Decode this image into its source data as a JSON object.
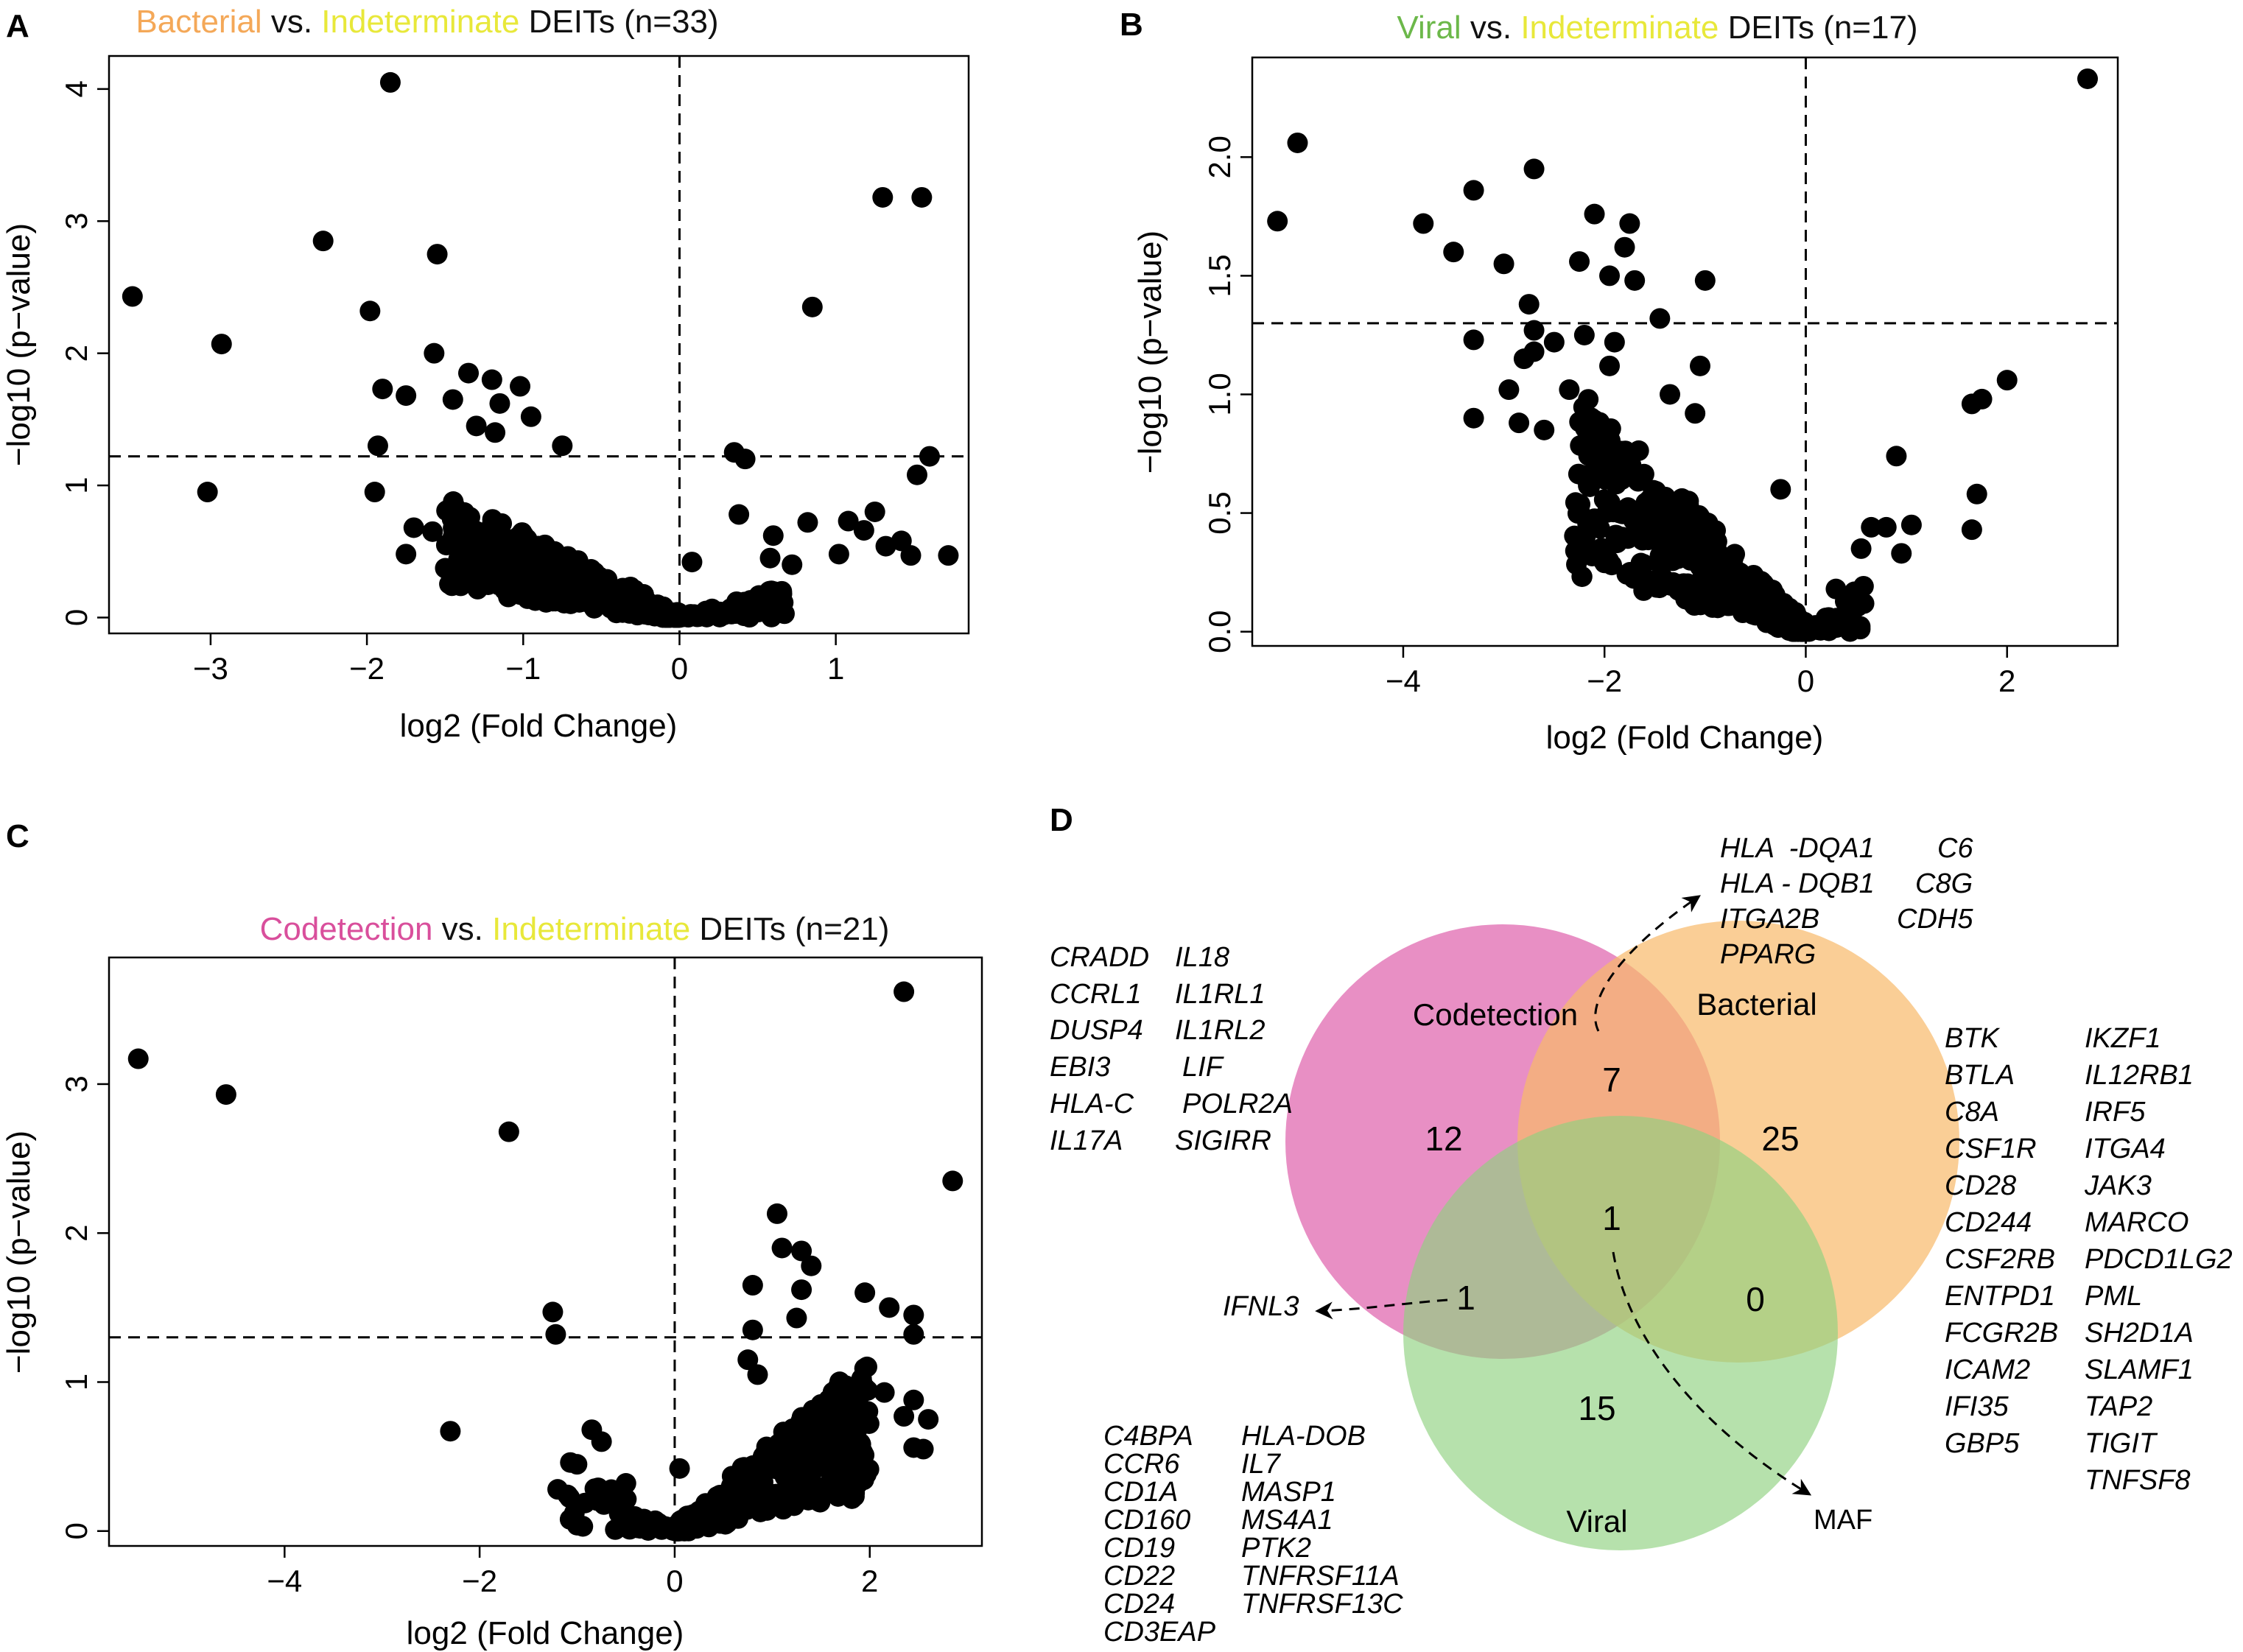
{
  "colors": {
    "bacterial": "#f4a858",
    "indeterminate": "#e8e83a",
    "viral": "#6cb84a",
    "codetection": "#d94f9c",
    "point": "#000000",
    "venn_codetection": "#e06ab0",
    "venn_bacterial": "#f8b96a",
    "venn_viral": "#8fd17f"
  },
  "chart_data": [
    {
      "panel": "A",
      "type": "scatter",
      "title_parts": [
        {
          "text": "Bacterial",
          "color": "bacterial"
        },
        {
          "text": " vs. ",
          "color": "black"
        },
        {
          "text": "Indeterminate",
          "color": "indeterminate"
        },
        {
          "text": " DEITs (n=33)",
          "color": "black"
        }
      ],
      "xlabel": "log2 (Fold Change)",
      "ylabel": "−log10 (p−value)",
      "xlim": [
        -3.65,
        1.85
      ],
      "ylim": [
        -0.12,
        4.25
      ],
      "xticks": [
        -3,
        -2,
        -1,
        0,
        1
      ],
      "yticks": [
        0,
        1,
        2,
        3,
        4
      ],
      "tick_labels_x": [
        "−3",
        "−2",
        "−1",
        "0",
        "1"
      ],
      "tick_labels_y": [
        "0",
        "1",
        "2",
        "3",
        "4"
      ],
      "threshold_y": 1.22,
      "threshold_x": 0,
      "points": [
        [
          -1.85,
          4.05
        ],
        [
          1.3,
          3.18
        ],
        [
          1.55,
          3.18
        ],
        [
          -2.28,
          2.85
        ],
        [
          -1.55,
          2.75
        ],
        [
          -3.5,
          2.43
        ],
        [
          -1.98,
          2.32
        ],
        [
          0.85,
          2.35
        ],
        [
          -2.93,
          2.07
        ],
        [
          -1.57,
          2.0
        ],
        [
          -1.35,
          1.85
        ],
        [
          -1.2,
          1.8
        ],
        [
          -1.02,
          1.75
        ],
        [
          -1.9,
          1.73
        ],
        [
          -1.75,
          1.68
        ],
        [
          -1.45,
          1.65
        ],
        [
          -1.15,
          1.62
        ],
        [
          -0.95,
          1.52
        ],
        [
          -1.3,
          1.45
        ],
        [
          -1.18,
          1.4
        ],
        [
          -1.93,
          1.3
        ],
        [
          -0.75,
          1.3
        ],
        [
          0.35,
          1.25
        ],
        [
          0.42,
          1.2
        ],
        [
          1.6,
          1.22
        ],
        [
          1.52,
          1.08
        ],
        [
          -3.02,
          0.95
        ],
        [
          -1.95,
          0.95
        ],
        [
          -1.7,
          0.68
        ],
        [
          -1.75,
          0.48
        ],
        [
          -1.58,
          0.65
        ],
        [
          0.6,
          0.62
        ],
        [
          0.82,
          0.72
        ],
        [
          0.58,
          0.45
        ],
        [
          0.72,
          0.4
        ],
        [
          1.02,
          0.48
        ],
        [
          1.08,
          0.73
        ],
        [
          1.25,
          0.8
        ],
        [
          1.18,
          0.66
        ],
        [
          1.48,
          0.47
        ],
        [
          1.72,
          0.47
        ],
        [
          1.42,
          0.58
        ],
        [
          1.32,
          0.54
        ],
        [
          0.38,
          0.78
        ],
        [
          0.08,
          0.42
        ]
      ],
      "cluster": "negative-wedge"
    },
    {
      "panel": "B",
      "type": "scatter",
      "title_parts": [
        {
          "text": "Viral",
          "color": "viral"
        },
        {
          "text": "  vs. ",
          "color": "black"
        },
        {
          "text": "Indeterminate",
          "color": "indeterminate"
        },
        {
          "text": " DEITs (n=17)",
          "color": "black"
        }
      ],
      "xlabel": "log2 (Fold Change)",
      "ylabel": "−log10 (p−value)",
      "xlim": [
        -5.5,
        3.1
      ],
      "ylim": [
        -0.06,
        2.42
      ],
      "xticks": [
        -4,
        -2,
        0,
        2
      ],
      "yticks": [
        0.0,
        0.5,
        1.0,
        1.5,
        2.0
      ],
      "tick_labels_x": [
        "−4",
        "−2",
        "0",
        "2"
      ],
      "tick_labels_y": [
        "0.0",
        "0.5",
        "1.0",
        "1.5",
        "2.0"
      ],
      "threshold_y": 1.3,
      "threshold_x": 0,
      "points": [
        [
          2.8,
          2.33
        ],
        [
          -5.05,
          2.06
        ],
        [
          -5.25,
          1.73
        ],
        [
          -2.7,
          1.95
        ],
        [
          -3.3,
          1.86
        ],
        [
          -2.1,
          1.76
        ],
        [
          -3.8,
          1.72
        ],
        [
          -1.75,
          1.72
        ],
        [
          -1.8,
          1.62
        ],
        [
          -3.5,
          1.6
        ],
        [
          -2.25,
          1.56
        ],
        [
          -3.0,
          1.55
        ],
        [
          -1.7,
          1.48
        ],
        [
          -1.95,
          1.5
        ],
        [
          -1.0,
          1.48
        ],
        [
          -2.75,
          1.38
        ],
        [
          -1.45,
          1.32
        ],
        [
          -2.7,
          1.27
        ],
        [
          -2.2,
          1.25
        ],
        [
          -3.3,
          1.23
        ],
        [
          -2.5,
          1.22
        ],
        [
          -1.9,
          1.22
        ],
        [
          -2.7,
          1.18
        ],
        [
          -2.8,
          1.15
        ],
        [
          -1.95,
          1.12
        ],
        [
          -1.05,
          1.12
        ],
        [
          -2.95,
          1.02
        ],
        [
          -2.35,
          1.02
        ],
        [
          -1.35,
          1.0
        ],
        [
          -3.3,
          0.9
        ],
        [
          -2.85,
          0.88
        ],
        [
          -2.6,
          0.85
        ],
        [
          -1.1,
          0.92
        ],
        [
          2.0,
          1.06
        ],
        [
          1.75,
          0.98
        ],
        [
          1.65,
          0.96
        ],
        [
          1.7,
          0.58
        ],
        [
          1.65,
          0.43
        ],
        [
          0.9,
          0.74
        ],
        [
          1.05,
          0.45
        ],
        [
          0.65,
          0.44
        ],
        [
          0.8,
          0.44
        ],
        [
          0.95,
          0.33
        ],
        [
          0.55,
          0.35
        ],
        [
          0.3,
          0.18
        ],
        [
          -0.25,
          0.6
        ]
      ],
      "cluster": "negative-wedge"
    },
    {
      "panel": "C",
      "type": "scatter",
      "title_parts": [
        {
          "text": "Codetection",
          "color": "codetection"
        },
        {
          "text": "  vs. ",
          "color": "black"
        },
        {
          "text": "Indeterminate",
          "color": "indeterminate"
        },
        {
          "text": "  DEITs (n=21)",
          "color": "black"
        }
      ],
      "xlabel": "log2 (Fold Change)",
      "ylabel": "−log10 (p−value)",
      "xlim": [
        -5.8,
        3.15
      ],
      "ylim": [
        -0.1,
        3.85
      ],
      "xticks": [
        -4,
        -2,
        0,
        2
      ],
      "yticks": [
        0,
        1,
        2,
        3
      ],
      "tick_labels_x": [
        "−4",
        "−2",
        "0",
        "2"
      ],
      "tick_labels_y": [
        "0",
        "1",
        "2",
        "3"
      ],
      "threshold_y": 1.3,
      "threshold_x": 0,
      "points": [
        [
          2.35,
          3.62
        ],
        [
          -5.5,
          3.17
        ],
        [
          -4.6,
          2.93
        ],
        [
          -1.7,
          2.68
        ],
        [
          2.85,
          2.35
        ],
        [
          1.05,
          2.13
        ],
        [
          1.1,
          1.9
        ],
        [
          1.3,
          1.88
        ],
        [
          1.4,
          1.78
        ],
        [
          0.8,
          1.65
        ],
        [
          1.3,
          1.62
        ],
        [
          1.25,
          1.43
        ],
        [
          1.95,
          1.6
        ],
        [
          2.2,
          1.5
        ],
        [
          2.45,
          1.45
        ],
        [
          -1.25,
          1.47
        ],
        [
          -1.22,
          1.32
        ],
        [
          0.8,
          1.35
        ],
        [
          2.45,
          1.32
        ],
        [
          0.75,
          1.15
        ],
        [
          0.85,
          1.05
        ],
        [
          2.15,
          0.93
        ],
        [
          2.45,
          0.88
        ],
        [
          2.35,
          0.77
        ],
        [
          2.6,
          0.75
        ],
        [
          2.55,
          0.55
        ],
        [
          2.45,
          0.56
        ],
        [
          1.5,
          0.85
        ],
        [
          -2.3,
          0.67
        ],
        [
          -0.75,
          0.6
        ],
        [
          -0.85,
          0.68
        ],
        [
          -1.2,
          0.28
        ],
        [
          -0.5,
          0.32
        ],
        [
          0.05,
          0.42
        ]
      ],
      "cluster": "positive-wedge"
    }
  ],
  "panel_labels": {
    "a": "A",
    "b": "B",
    "c": "C",
    "d": "D"
  },
  "venn": {
    "sets": {
      "codetection": "Codetection",
      "bacterial": "Bacterial",
      "viral": "Viral"
    },
    "counts": {
      "codetection_only": "12",
      "bacterial_only": "25",
      "viral_only": "15",
      "codetection_bacterial": "7",
      "codetection_viral": "1",
      "bacterial_viral": "0",
      "all_three": "1"
    },
    "annotations": {
      "ifnl3": "IFNL3",
      "maf": "MAF"
    },
    "genes_codetection_col1": [
      "CRADD",
      "CCRL1",
      "DUSP4",
      "EBI3",
      "HLA-C",
      "IL17A"
    ],
    "genes_codetection_col2": [
      "IL18",
      "IL1RL1",
      "IL1RL2",
      "LIF",
      "POLR2A",
      "SIGIRR"
    ],
    "genes_overlap_col1": [
      "HLA  -DQA1",
      "HLA - DQB1",
      "ITGA2B",
      "PPARG"
    ],
    "genes_overlap_col2": [
      "C6",
      "C8G",
      "CDH5"
    ],
    "genes_bacterial_col1": [
      "BTK",
      "BTLA",
      "C8A",
      "CSF1R",
      "CD28",
      "CD244",
      "CSF2RB",
      "ENTPD1",
      "FCGR2B",
      "ICAM2",
      "IFI35",
      "GBP5"
    ],
    "genes_bacterial_col2": [
      "IKZF1",
      "IL12RB1",
      "IRF5",
      "ITGA4",
      "JAK3",
      "MARCO",
      "PDCD1LG2",
      "PML",
      "SH2D1A",
      "SLAMF1",
      "TAP2",
      "TIGIT",
      "TNFSF8"
    ],
    "genes_viral_col1": [
      "C4BPA",
      "CCR6",
      "CD1A",
      "CD160",
      "CD19",
      "CD22",
      "CD24",
      "CD3EAP"
    ],
    "genes_viral_col2": [
      "HLA-DOB",
      "IL7",
      "MASP1",
      "MS4A1",
      "PTK2",
      "TNFRSF11A",
      "TNFRSF13C"
    ]
  }
}
